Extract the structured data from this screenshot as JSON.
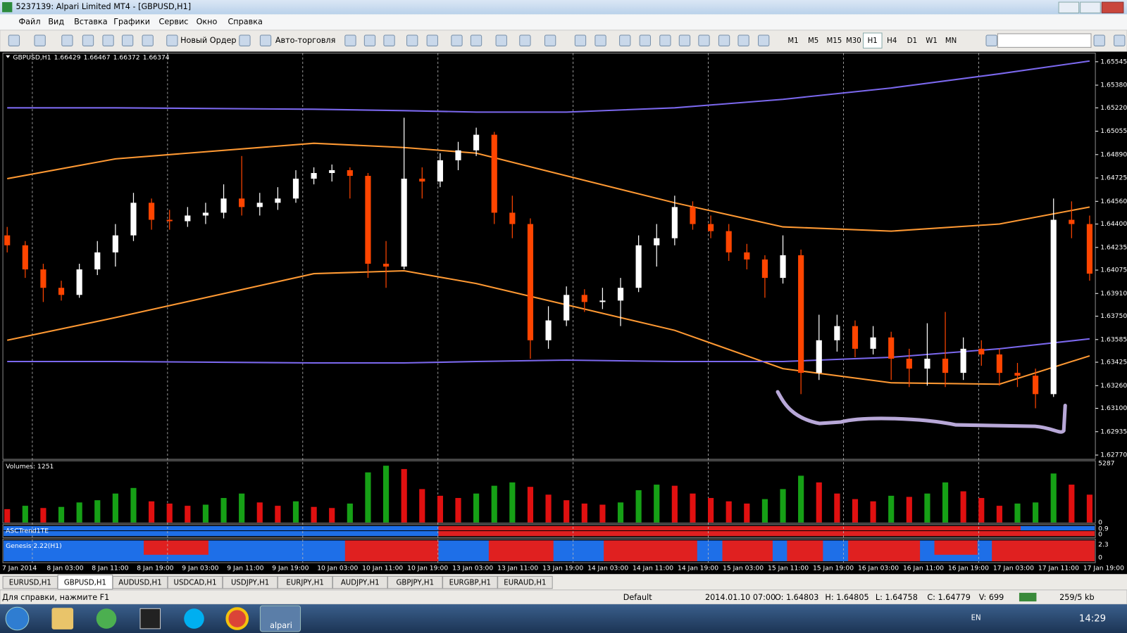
{
  "window": {
    "title": "5237139: Alpari Limited MT4 - [GBPUSD,H1]",
    "menu": [
      "Файл",
      "Вид",
      "Вставка",
      "Графики",
      "Сервис",
      "Окно",
      "Справка"
    ]
  },
  "toolbar": {
    "buttons": [
      "Новый Ордер",
      "Авто-торговля"
    ],
    "timeframes": [
      "M1",
      "M5",
      "M15",
      "M30",
      "H1",
      "H4",
      "D1",
      "W1",
      "MN"
    ],
    "active_timeframe": 4
  },
  "chart": {
    "type": "candlestick",
    "header": {
      "symbol": "GBPUSD,H1",
      "open": 1.66429,
      "high": 1.66467,
      "low": 1.66372,
      "close": 1.66374
    },
    "ylim": [
      1.6274,
      1.65606
    ],
    "price_ticks": [
      1.65545,
      {
        "value": 1.6538,
        "label": "1.65380"
      },
      {
        "value": 1.6522,
        "label": "1.65220"
      },
      1.65055,
      {
        "value": 1.6489,
        "label": "1.64890"
      },
      1.64725,
      {
        "value": 1.6456,
        "label": "1.64560"
      },
      {
        "value": 1.644,
        "label": "1.64400"
      },
      1.64235,
      1.64075,
      {
        "value": 1.6391,
        "label": "1.63910"
      },
      {
        "value": 1.6375,
        "label": "1.63750"
      },
      1.63585,
      1.63425,
      {
        "value": 1.6326,
        "label": "1.63260"
      },
      {
        "value": 1.631,
        "label": "1.63100"
      },
      1.62935,
      {
        "value": 1.6277,
        "label": "1.62770"
      }
    ],
    "time_labels": [
      "7 Jan 2014",
      "8 Jan 03:00",
      "8 Jan 11:00",
      "8 Jan 19:00",
      "9 Jan 03:00",
      "9 Jan 11:00",
      "9 Jan 19:00",
      "10 Jan 03:00",
      "10 Jan 11:00",
      "10 Jan 19:00",
      "13 Jan 03:00",
      "13 Jan 11:00",
      "13 Jan 19:00",
      "14 Jan 03:00",
      "14 Jan 11:00",
      "14 Jan 19:00",
      "15 Jan 03:00",
      "15 Jan 11:00",
      "15 Jan 19:00",
      "16 Jan 03:00",
      "16 Jan 11:00",
      "16 Jan 19:00",
      "17 Jan 03:00",
      "17 Jan 11:00",
      "17 Jan 19:00"
    ],
    "bull_color": "#ffffff",
    "bear_color": "#ff4500",
    "candles": [
      [
        1.6432,
        1.6438,
        1.642,
        1.6425
      ],
      [
        1.6425,
        1.6428,
        1.6402,
        1.6408
      ],
      [
        1.6408,
        1.6412,
        1.6385,
        1.6395
      ],
      [
        1.6395,
        1.64,
        1.6386,
        1.639
      ],
      [
        1.639,
        1.6412,
        1.6388,
        1.6408
      ],
      [
        1.6408,
        1.6428,
        1.6404,
        1.642
      ],
      [
        1.642,
        1.644,
        1.641,
        1.6432
      ],
      [
        1.6432,
        1.6462,
        1.6428,
        1.6455
      ],
      [
        1.6455,
        1.6458,
        1.6436,
        1.6443
      ],
      [
        1.6443,
        1.645,
        1.6436,
        1.6442
      ],
      [
        1.6442,
        1.6452,
        1.6438,
        1.6446
      ],
      [
        1.6446,
        1.6455,
        1.644,
        1.6448
      ],
      [
        1.6448,
        1.6468,
        1.6444,
        1.6458
      ],
      [
        1.6458,
        1.6488,
        1.6446,
        1.6452
      ],
      [
        1.6452,
        1.6462,
        1.6446,
        1.6455
      ],
      [
        1.6455,
        1.6466,
        1.645,
        1.6458
      ],
      [
        1.6458,
        1.6478,
        1.6455,
        1.6472
      ],
      [
        1.6472,
        1.648,
        1.6468,
        1.6476
      ],
      [
        1.6476,
        1.6482,
        1.647,
        1.6478
      ],
      [
        1.6478,
        1.648,
        1.6458,
        1.6474
      ],
      [
        1.6474,
        1.6476,
        1.6402,
        1.6412
      ],
      [
        1.6412,
        1.6428,
        1.6395,
        1.641
      ],
      [
        1.641,
        1.6515,
        1.6408,
        1.6472
      ],
      [
        1.6472,
        1.648,
        1.6458,
        1.647
      ],
      [
        1.647,
        1.649,
        1.6466,
        1.6485
      ],
      [
        1.6485,
        1.6498,
        1.6478,
        1.6492
      ],
      [
        1.6492,
        1.6508,
        1.6488,
        1.6503
      ],
      [
        1.6503,
        1.6505,
        1.644,
        1.6448
      ],
      [
        1.6448,
        1.646,
        1.643,
        1.644
      ],
      [
        1.644,
        1.6444,
        1.6345,
        1.6358
      ],
      [
        1.6358,
        1.6382,
        1.6352,
        1.6372
      ],
      [
        1.6372,
        1.6396,
        1.6368,
        1.639
      ],
      [
        1.639,
        1.6394,
        1.6378,
        1.6385
      ],
      [
        1.6385,
        1.6395,
        1.638,
        1.6386
      ],
      [
        1.6386,
        1.6402,
        1.6368,
        1.6395
      ],
      [
        1.6395,
        1.6432,
        1.6392,
        1.6425
      ],
      [
        1.6425,
        1.644,
        1.641,
        1.643
      ],
      [
        1.643,
        1.646,
        1.6425,
        1.6452
      ],
      [
        1.6452,
        1.6456,
        1.6436,
        1.644
      ],
      [
        1.644,
        1.6446,
        1.643,
        1.6435
      ],
      [
        1.6435,
        1.644,
        1.6414,
        1.642
      ],
      [
        1.642,
        1.6426,
        1.6408,
        1.6415
      ],
      [
        1.6415,
        1.6418,
        1.6388,
        1.6402
      ],
      [
        1.6402,
        1.6432,
        1.6398,
        1.6418
      ],
      [
        1.6418,
        1.6422,
        1.632,
        1.6335
      ],
      [
        1.6335,
        1.6376,
        1.633,
        1.6358
      ],
      [
        1.6358,
        1.6376,
        1.635,
        1.6368
      ],
      [
        1.6368,
        1.6372,
        1.6346,
        1.6352
      ],
      [
        1.6352,
        1.6368,
        1.6348,
        1.636
      ],
      [
        1.636,
        1.6364,
        1.633,
        1.6345
      ],
      [
        1.6345,
        1.6352,
        1.6325,
        1.6338
      ],
      [
        1.6338,
        1.637,
        1.6326,
        1.6345
      ],
      [
        1.6345,
        1.6378,
        1.6325,
        1.6335
      ],
      [
        1.6335,
        1.636,
        1.633,
        1.6352
      ],
      [
        1.6352,
        1.6358,
        1.634,
        1.6348
      ],
      [
        1.6348,
        1.6352,
        1.6326,
        1.6335
      ],
      [
        1.6335,
        1.6342,
        1.6325,
        1.6333
      ],
      [
        1.6333,
        1.6338,
        1.631,
        1.632
      ],
      [
        1.632,
        1.6458,
        1.6318,
        1.6443
      ],
      [
        1.6443,
        1.6456,
        1.643,
        1.644
      ],
      [
        1.644,
        1.6446,
        1.64,
        1.6405
      ]
    ],
    "band_index": [
      0,
      6,
      17,
      22,
      26,
      31,
      37,
      43,
      49,
      55,
      60
    ],
    "bands": [
      {
        "color": "#7b68ee",
        "values": [
          1.6522,
          1.6522,
          1.6521,
          1.652,
          1.6519,
          1.6519,
          1.6522,
          1.6528,
          1.6536,
          1.6546,
          1.6555
        ]
      },
      {
        "color": "#ff9933",
        "values": [
          1.6472,
          1.6486,
          1.6497,
          1.6494,
          1.649,
          1.6474,
          1.6455,
          1.6438,
          1.6435,
          1.644,
          1.6452
        ]
      },
      {
        "color": "#ff9933",
        "values": [
          1.6358,
          1.6374,
          1.6405,
          1.6407,
          1.6398,
          1.6383,
          1.6365,
          1.6338,
          1.6328,
          1.6327,
          1.6347
        ]
      },
      {
        "color": "#7b68ee",
        "values": [
          1.6343,
          1.6343,
          1.6342,
          1.6342,
          1.6343,
          1.6344,
          1.6343,
          1.6343,
          1.6346,
          1.6352,
          1.6359
        ]
      }
    ],
    "volumes": {
      "label": "Volumes: 1251",
      "ylim": [
        0,
        5287
      ],
      "ticks": [
        5287,
        0
      ],
      "up_color": "#16a016",
      "down_color": "#e01010",
      "values": [
        1200,
        1500,
        1300,
        1400,
        1800,
        2000,
        2600,
        3100,
        1900,
        1700,
        1500,
        1600,
        2200,
        2600,
        1800,
        1500,
        1900,
        1400,
        1300,
        1700,
        4500,
        5100,
        4800,
        3000,
        2400,
        2200,
        2600,
        3300,
        3600,
        3200,
        2500,
        2000,
        1700,
        1600,
        1800,
        2900,
        3400,
        3300,
        2600,
        2200,
        1900,
        1700,
        2100,
        3000,
        4200,
        3600,
        2600,
        2100,
        1900,
        2400,
        2300,
        2600,
        3600,
        2800,
        2200,
        1500,
        1700,
        1800,
        4400,
        3400,
        2500
      ]
    },
    "indicators": [
      {
        "label": "ASCTrend1TE",
        "ticks": [
          0.9,
          0
        ]
      },
      {
        "label": "Genesis 2.22(H1)",
        "ticks": [
          2.3,
          0
        ]
      }
    ]
  },
  "tabs": {
    "items": [
      "EURUSD,H1",
      "GBPUSD,H1",
      "AUDUSD,H1",
      "USDCAD,H1",
      "USDJPY,H1",
      "EURJPY,H1",
      "AUDJPY,H1",
      "GBPJPY,H1",
      "EURGBP,H1",
      "EURAUD,H1"
    ],
    "active": 1
  },
  "status": {
    "help": "Для справки, нажмите F1",
    "profile": "Default",
    "time": "2014.01.10 07:00",
    "open": "O: 1.64803",
    "high": "H: 1.64805",
    "low": "L: 1.64758",
    "close": "C: 1.64779",
    "volume": "V: 699",
    "traffic": "259/5 kb"
  },
  "taskbar": {
    "app": "alpari",
    "lang": "EN",
    "clock": "14:29"
  }
}
